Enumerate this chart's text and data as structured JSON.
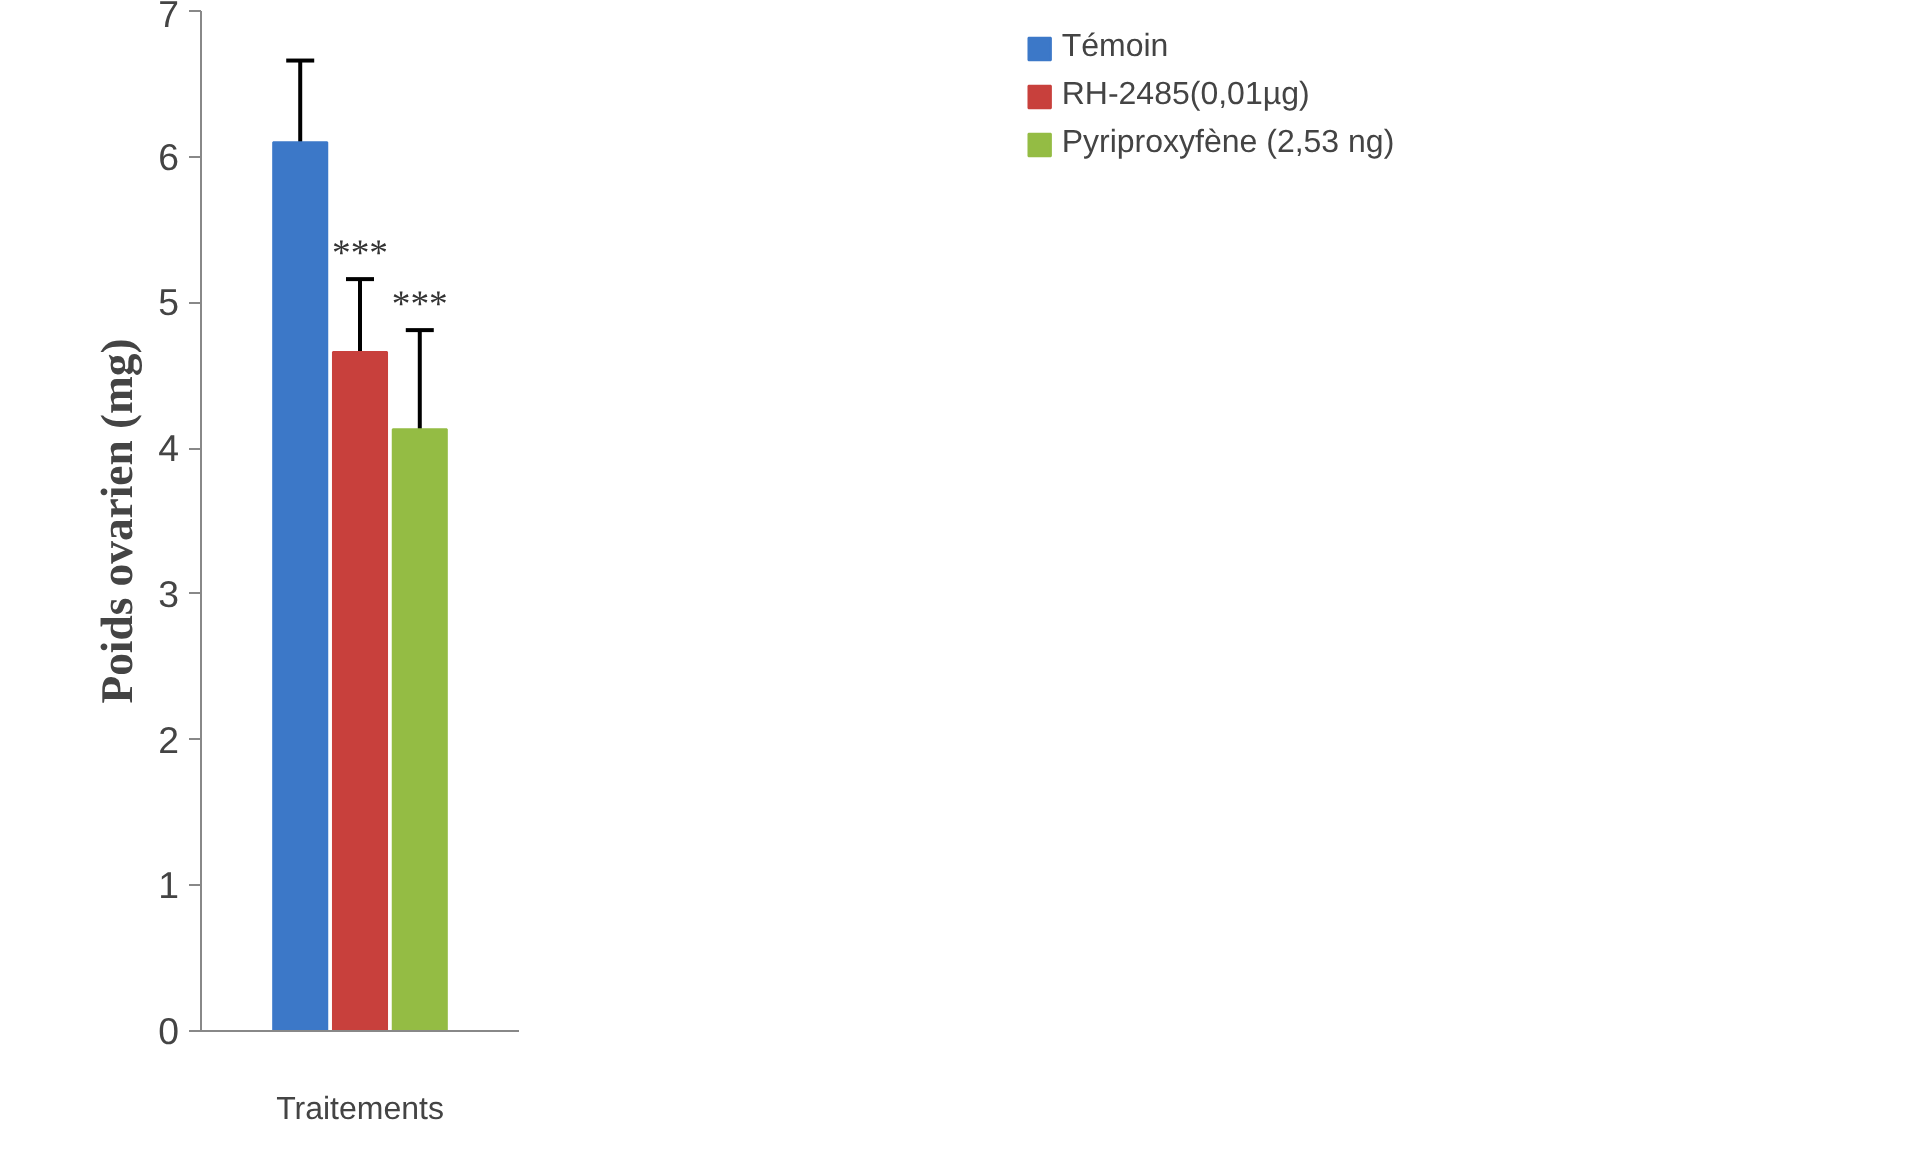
{
  "chart_data": {
    "type": "bar",
    "ylabel": "Poids ovarien (mg)",
    "categories": [
      "Traitements"
    ],
    "series": [
      {
        "name": "Témoin",
        "color": "#3c78c8",
        "values": [
          6.1
        ],
        "errors": [
          [
            6.1,
            6.66
          ]
        ]
      },
      {
        "name": "RH-2485(0,01µg)",
        "color": "#c8403c",
        "values": [
          4.66
        ],
        "errors": [
          [
            4.66,
            5.16
          ]
        ],
        "value_labels": [
          "***"
        ]
      },
      {
        "name": "Pyriproxyfène (2,53 ng)",
        "color": "#94bc44",
        "values": [
          4.13
        ],
        "errors": [
          [
            4.13,
            4.81
          ]
        ],
        "value_labels": [
          "***"
        ]
      }
    ],
    "ylim": [
      0,
      7
    ],
    "yticks": [
      0,
      1,
      2,
      3,
      4,
      5,
      6,
      7
    ],
    "grid": false,
    "legend": "top right"
  }
}
